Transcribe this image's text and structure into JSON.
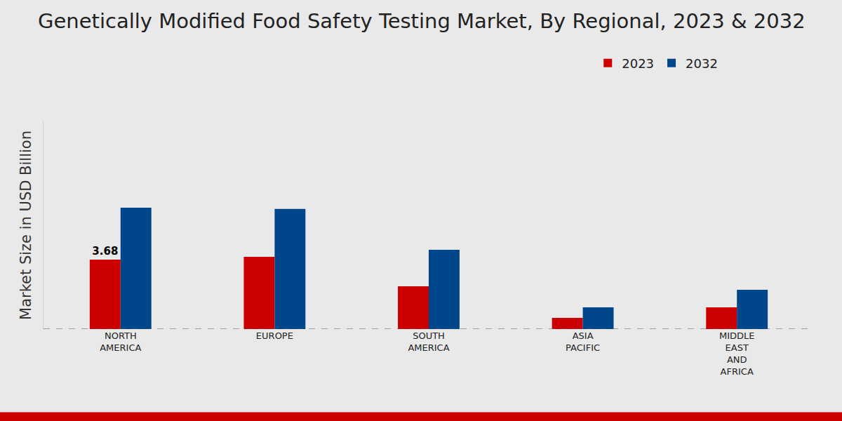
{
  "chart_data": {
    "type": "bar",
    "title": "Genetically Modified Food Safety Testing Market, By Regional, 2023 & 2032",
    "y_label": "Market Size in USD Billion",
    "categories": [
      "NORTH AMERICA",
      "EUROPE",
      "SOUTH AMERICA",
      "ASIA PACIFIC",
      "MIDDLE EAST AND AFRICA"
    ],
    "series": [
      {
        "name": "2023",
        "color": "#cc0000",
        "values": [
          3.68,
          3.83,
          2.27,
          0.59,
          1.15
        ]
      },
      {
        "name": "2032",
        "color": "#00468b",
        "values": [
          6.43,
          6.36,
          4.2,
          1.15,
          2.08
        ]
      }
    ],
    "annotations": [
      {
        "series": "2023",
        "category": "NORTH AMERICA",
        "text": "3.68"
      }
    ],
    "ylim": [
      0,
      11
    ],
    "tick_labels": "x",
    "grid": false,
    "legend": "top right"
  }
}
